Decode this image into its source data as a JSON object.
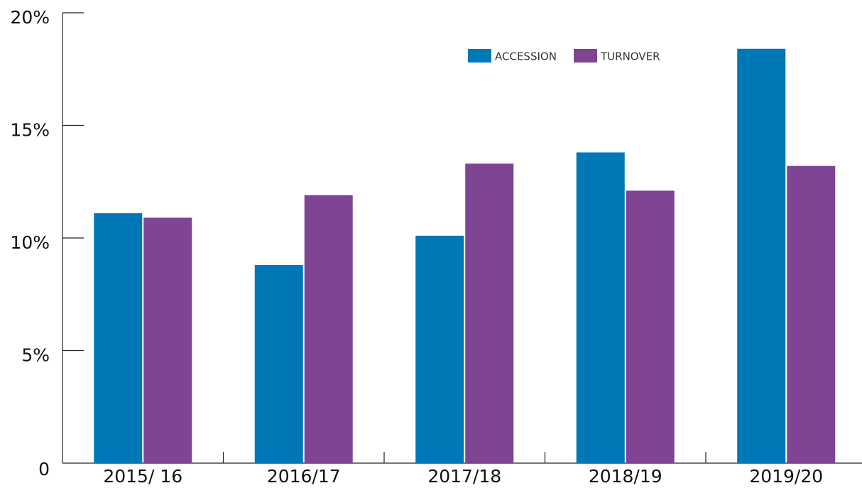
{
  "chart_data": {
    "type": "bar",
    "categories": [
      "2015/ 16",
      "2016/17",
      "2017/18",
      "2018/19",
      "2019/20"
    ],
    "series": [
      {
        "name": "ACCESSION",
        "color": "#0077b6",
        "values": [
          11.1,
          8.8,
          10.1,
          13.8,
          18.4
        ]
      },
      {
        "name": "TURNOVER",
        "color": "#7f4493",
        "values": [
          10.9,
          11.9,
          13.3,
          12.1,
          13.2
        ]
      }
    ],
    "ylim": [
      0,
      20
    ],
    "yticks": [
      0,
      {
        "value": 5,
        "label": "5%"
      },
      {
        "value": 10,
        "label": "10%"
      },
      {
        "value": 15,
        "label": "15%"
      },
      {
        "value": 20,
        "label": "20%"
      }
    ],
    "legend": "upper right"
  }
}
